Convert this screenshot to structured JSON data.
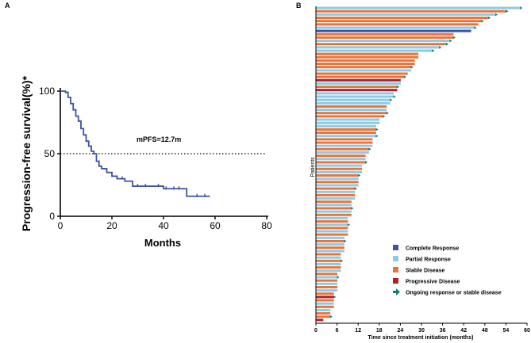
{
  "chart_data": [
    {
      "panel": "A",
      "type": "line",
      "subtype": "kaplan-meier",
      "title": "",
      "xlabel": "Months",
      "ylabel": "Progression-free survival(%)*",
      "xlim": [
        0,
        80
      ],
      "ylim": [
        0,
        100
      ],
      "xticks": [
        "0",
        "20",
        "40",
        "60",
        "80"
      ],
      "yticks": [
        "0",
        "50",
        "100"
      ],
      "annotation": "mPFS=12.7m",
      "reference_line": {
        "y": 50,
        "style": "dotted"
      },
      "color": "#3f51a3",
      "series": [
        {
          "name": "PFS",
          "x": [
            0,
            2,
            3,
            4,
            5,
            6,
            7,
            8,
            9,
            10,
            11,
            12,
            13,
            14,
            15,
            16,
            18,
            20,
            22,
            25,
            28,
            35,
            40,
            45,
            49,
            58
          ],
          "y": [
            100,
            99,
            95,
            90,
            85,
            80,
            76,
            70,
            65,
            60,
            56,
            52,
            50,
            44,
            40,
            38,
            35,
            32,
            30,
            28,
            24,
            24,
            22,
            22,
            16,
            16
          ]
        }
      ],
      "censor_x": [
        24,
        30,
        33,
        38,
        41,
        44,
        46,
        53,
        56
      ]
    },
    {
      "panel": "B",
      "type": "bar",
      "subtype": "swimmer",
      "title": "",
      "xlabel": "Time since treatment initiation (months)",
      "ylabel": "Patients",
      "xlim": [
        0,
        60
      ],
      "xticks": [
        "0",
        "6",
        "12",
        "18",
        "24",
        "30",
        "36",
        "42",
        "48",
        "54",
        "60"
      ],
      "n_patients": 96,
      "categories_legend": [
        {
          "label": "Complete Response",
          "color": "#3f51a3"
        },
        {
          "label": "Partial Response",
          "color": "#8ccbe6"
        },
        {
          "label": "Stable Disease",
          "color": "#e8743b"
        },
        {
          "label": "Progressive Disease",
          "color": "#b01e27"
        },
        {
          "label": "Ongoing response or stable disease",
          "color": "#11807a"
        }
      ],
      "values": [
        58,
        54,
        51,
        49,
        47,
        46,
        45,
        44,
        39,
        39,
        38,
        37,
        35,
        33,
        29,
        29,
        28,
        28,
        27,
        27,
        26,
        25,
        24,
        24,
        23,
        23,
        22,
        22,
        21,
        21,
        20,
        20,
        20,
        19,
        18,
        18,
        17,
        17,
        17,
        17,
        16,
        16,
        16,
        15,
        15,
        14,
        14,
        14,
        13,
        13,
        13,
        12,
        12,
        12,
        12,
        11,
        11,
        11,
        11,
        10,
        10,
        10,
        10,
        10,
        9,
        9,
        9,
        9,
        9,
        9,
        8,
        8,
        8,
        8,
        8,
        7,
        7,
        7,
        7,
        7,
        7,
        6,
        6,
        6,
        6,
        6,
        6,
        5,
        5,
        5,
        5,
        5,
        4,
        4,
        4,
        2
      ],
      "statuses": [
        "PR",
        "SD",
        "PR",
        "SD",
        "SD",
        "SD",
        "PR",
        "CR",
        "SD",
        "SD",
        "PR",
        "SD",
        "PR",
        "PR",
        "SD",
        "SD",
        "SD",
        "SD",
        "SD",
        "PR",
        "SD",
        "SD",
        "PD",
        "PR",
        "SD",
        "PD",
        "PR",
        "PR",
        "PR",
        "PR",
        "SD",
        "PR",
        "SD",
        "SD",
        "PR",
        "PR",
        "PR",
        "SD",
        "SD",
        "PR",
        "SD",
        "SD",
        "PR",
        "SD",
        "PR",
        "SD",
        "PR",
        "SD",
        "PR",
        "SD",
        "PR",
        "SD",
        "PR",
        "SD",
        "PR",
        "SD",
        "PR",
        "SD",
        "PR",
        "SD",
        "PR",
        "SD",
        "PR",
        "SD",
        "PR",
        "SD",
        "PR",
        "SD",
        "PR",
        "SD",
        "PR",
        "SD",
        "PR",
        "SD",
        "PR",
        "SD",
        "PR",
        "SD",
        "PR",
        "SD",
        "PR",
        "SD",
        "PR",
        "SD",
        "PR",
        "SD",
        "PR",
        "SD",
        "PD",
        "SD",
        "PR",
        "SD",
        "PR",
        "SD",
        "SD",
        "PD"
      ],
      "ongoing": [
        1,
        1,
        1,
        1,
        1,
        0,
        1,
        0,
        0,
        1,
        1,
        1,
        1,
        1,
        0,
        0,
        0,
        0,
        1,
        0,
        0,
        1,
        0,
        0,
        1,
        0,
        0,
        1,
        1,
        0,
        0,
        0,
        1,
        1,
        0,
        0,
        0,
        1,
        0,
        1,
        0,
        0,
        0,
        1,
        0,
        0,
        0,
        1,
        0,
        0,
        0,
        1,
        0,
        0,
        0,
        1,
        0,
        0,
        0,
        0,
        0,
        1,
        0,
        0,
        0,
        0,
        1,
        0,
        0,
        0,
        0,
        1,
        0,
        0,
        0,
        0,
        0,
        1,
        0,
        0,
        0,
        0,
        1,
        0,
        0,
        0,
        0,
        0,
        1,
        0,
        0,
        0,
        0,
        0,
        1,
        0
      ]
    }
  ],
  "panel_labels": {
    "a": "A",
    "b": "B"
  }
}
